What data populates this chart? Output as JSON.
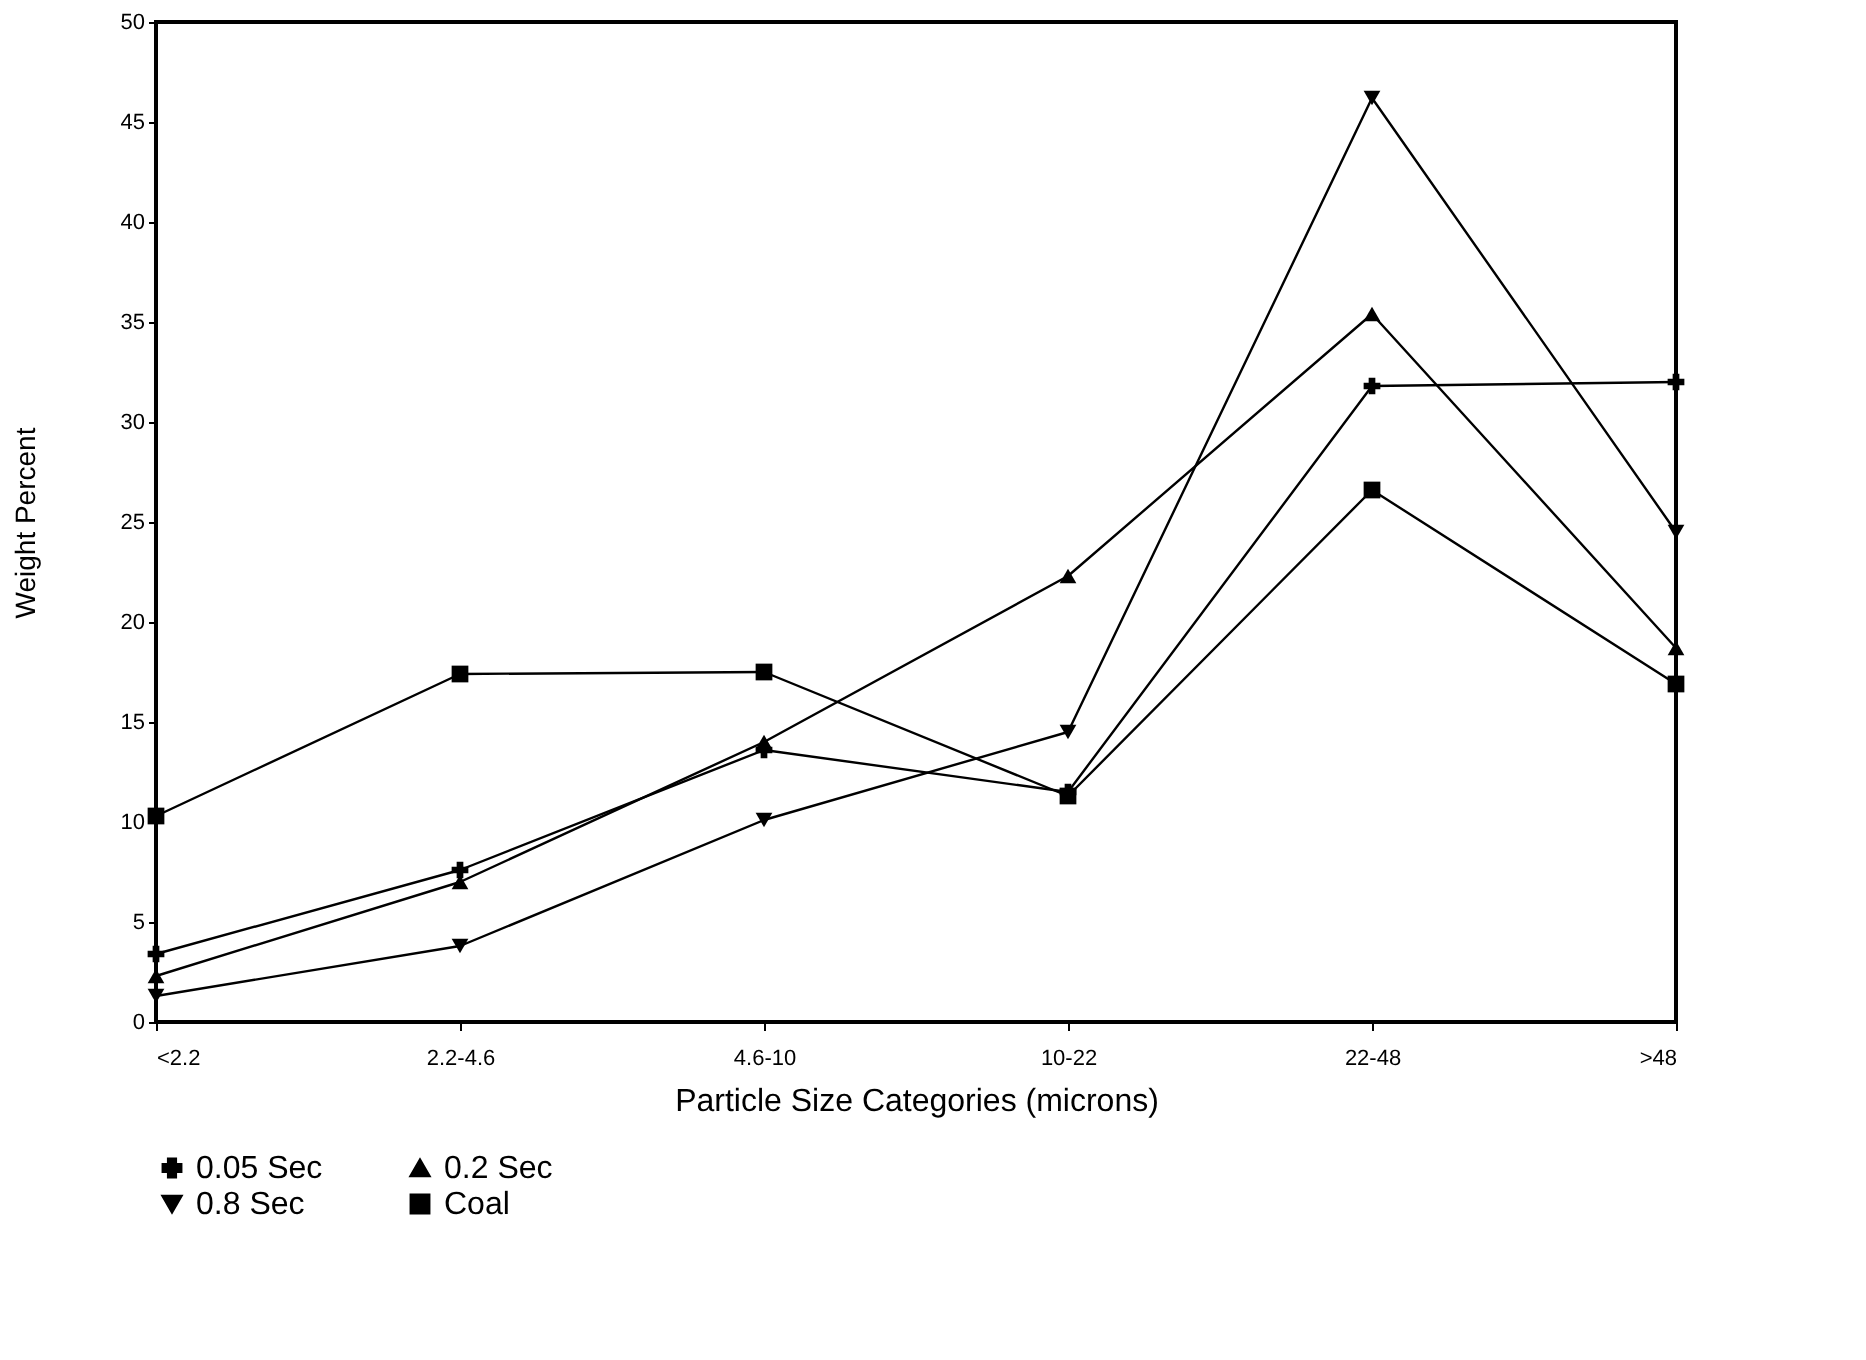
{
  "chart_data": {
    "type": "line",
    "xlabel": "Particle Size Categories (microns)",
    "ylabel": "Weight Percent",
    "categories": [
      "<2.2",
      "2.2-4.6",
      "4.6-10",
      "10-22",
      "22-48",
      ">48"
    ],
    "series": [
      {
        "name": "0.05 Sec",
        "color": "#000000",
        "marker": "cross",
        "values": [
          3.4,
          7.6,
          13.6,
          11.5,
          31.8,
          32.0
        ]
      },
      {
        "name": "0.2 Sec",
        "color": "#000000",
        "marker": "triangle",
        "values": [
          2.3,
          7.0,
          14.0,
          22.3,
          35.4,
          18.7
        ]
      },
      {
        "name": "0.8 Sec",
        "color": "#000000",
        "marker": "triangle-down",
        "values": [
          1.3,
          3.8,
          10.1,
          14.5,
          46.2,
          24.5
        ]
      },
      {
        "name": "Coal",
        "color": "#000000",
        "marker": "square",
        "values": [
          10.3,
          17.4,
          17.5,
          11.3,
          26.6,
          16.9
        ]
      }
    ],
    "ylim": [
      0,
      50
    ],
    "yticks": [
      0,
      5,
      10,
      15,
      20,
      25,
      30,
      35,
      40,
      45,
      50
    ],
    "grid": false,
    "legend": "bottom",
    "line_style": "solid"
  }
}
